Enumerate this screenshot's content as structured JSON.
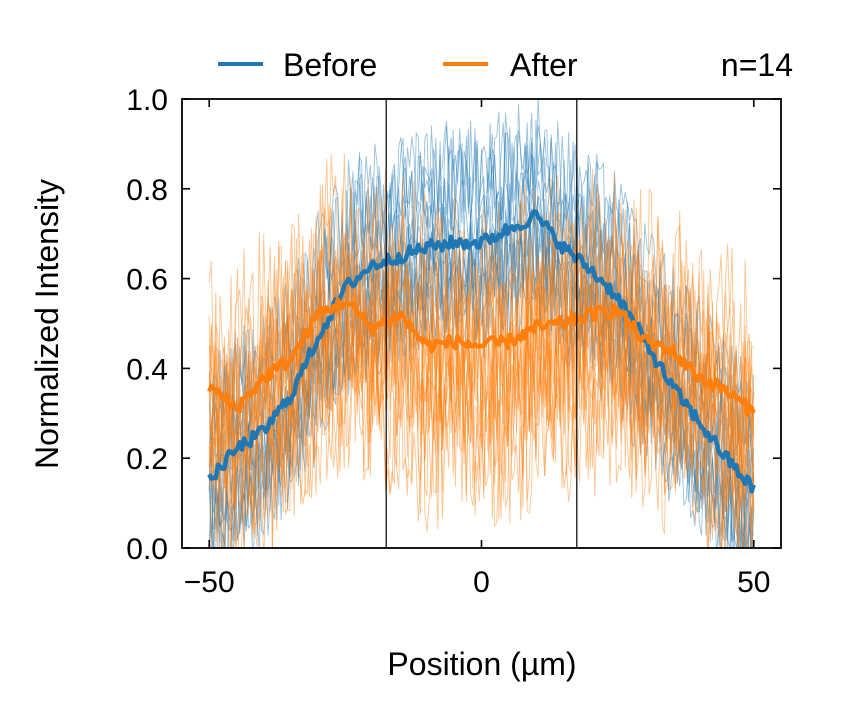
{
  "chart_data": {
    "type": "line",
    "title": "",
    "xlabel": "Position (µm)",
    "ylabel": "Normalized Intensity",
    "xlim": [
      -55,
      55
    ],
    "ylim": [
      0.0,
      1.0
    ],
    "xticks": [
      -50,
      0,
      50
    ],
    "xtick_labels": [
      "−50",
      "0",
      "50"
    ],
    "yticks": [
      0.0,
      0.2,
      0.4,
      0.6,
      0.8,
      1.0
    ],
    "ytick_labels": [
      "0.0",
      "0.2",
      "0.4",
      "0.6",
      "0.8",
      "1.0"
    ],
    "grid": false,
    "legend_position": "top",
    "annotation": "n=14",
    "vertical_lines": [
      -17.5,
      17.5
    ],
    "individual_traces_per_series": 14,
    "colors": {
      "Before": "#1f77b4",
      "After": "#ff7f0e"
    },
    "x": [
      -50,
      -45,
      -40,
      -35,
      -30,
      -25,
      -20,
      -15,
      -10,
      -5,
      0,
      5,
      10,
      15,
      20,
      25,
      30,
      35,
      40,
      45,
      50
    ],
    "series": [
      {
        "name": "Before",
        "values": [
          0.15,
          0.22,
          0.26,
          0.34,
          0.47,
          0.58,
          0.63,
          0.65,
          0.67,
          0.68,
          0.68,
          0.71,
          0.74,
          0.67,
          0.62,
          0.56,
          0.46,
          0.36,
          0.28,
          0.2,
          0.13
        ]
      },
      {
        "name": "After",
        "values": [
          0.36,
          0.31,
          0.38,
          0.42,
          0.52,
          0.55,
          0.49,
          0.52,
          0.45,
          0.46,
          0.45,
          0.46,
          0.49,
          0.5,
          0.52,
          0.53,
          0.46,
          0.44,
          0.38,
          0.35,
          0.3
        ]
      }
    ]
  }
}
